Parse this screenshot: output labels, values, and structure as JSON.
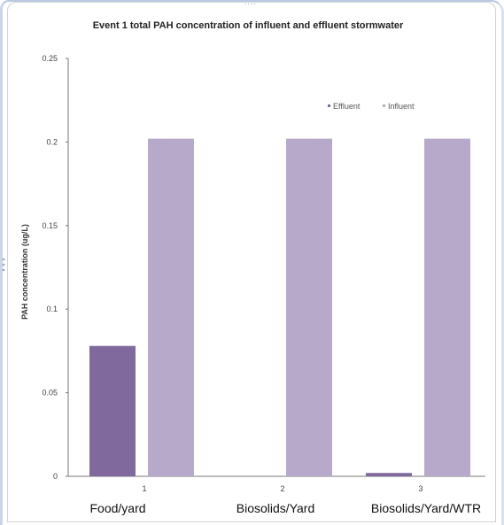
{
  "chart_data": {
    "type": "bar",
    "title": "Event 1 total PAH concentration of influent and effluent stormwater",
    "ylabel": "PAH concentration (ug/L)",
    "xlabel": "",
    "ylim": [
      0,
      0.25
    ],
    "yticks": [
      "0",
      "0.05",
      "0.1",
      "0.15",
      "0.2",
      "0.25"
    ],
    "yticks_values": [
      0,
      0.05,
      0.1,
      0.15,
      0.2,
      0.25
    ],
    "categories": [
      "1",
      "2",
      "3"
    ],
    "category_names": [
      "Food/yard",
      "Biosolids/Yard",
      "Biosolids/Yard/WTR"
    ],
    "series": [
      {
        "name": "Effluent",
        "color": "#80699d",
        "values": [
          0.078,
          0.0,
          0.002
        ]
      },
      {
        "name": "Influent",
        "color": "#b7a9c9",
        "values": [
          0.202,
          0.202,
          0.202
        ]
      }
    ],
    "legend_position": "top-right",
    "grid": false
  }
}
